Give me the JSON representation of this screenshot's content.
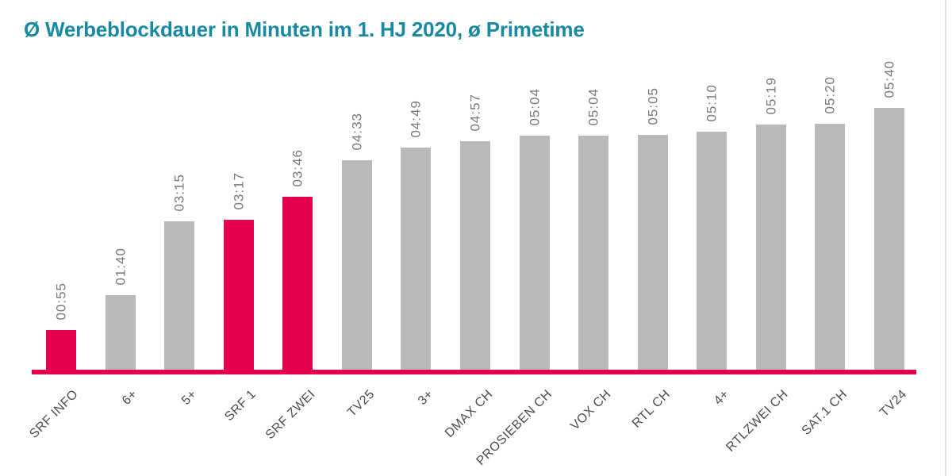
{
  "chart_data": {
    "type": "bar",
    "title": "Ø Werbeblockdauer in Minuten im 1. HJ 2020, ø Primetime",
    "categories": [
      "SRF INFO",
      "6+",
      "5+",
      "SRF 1",
      "SRF ZWEI",
      "TV25",
      "3+",
      "DMAX CH",
      "PROSIEBEN CH",
      "VOX CH",
      "RTL CH",
      "4+",
      "RTLZWEI CH",
      "SAT.1 CH",
      "TV24"
    ],
    "values": [
      "00:55",
      "01:40",
      "03:15",
      "03:17",
      "03:46",
      "04:33",
      "04:49",
      "04:57",
      "05:04",
      "05:04",
      "05:05",
      "05:10",
      "05:19",
      "05:20",
      "05:40"
    ],
    "values_seconds": [
      55,
      100,
      195,
      197,
      226,
      273,
      289,
      297,
      304,
      304,
      305,
      310,
      319,
      320,
      340
    ],
    "unit": "minutes mm:ss",
    "highlighted_categories": [
      "SRF INFO",
      "SRF 1",
      "SRF ZWEI"
    ],
    "highlight_indices": [
      0,
      3,
      4
    ],
    "ylim_seconds": [
      0,
      347
    ],
    "xlabel": "",
    "ylabel": "",
    "legend": "none",
    "grid": false,
    "value_label_style": "rotated 90° above each bar",
    "category_label_style": "rotated 45° below axis",
    "colors": {
      "highlight_bar": "#E4004B",
      "default_bar": "#BABABA",
      "axis_line": "#E4004B",
      "title_text": "#1789A1",
      "value_label_text": "#7A7A7A",
      "category_label_text": "#4D4D4D"
    }
  }
}
